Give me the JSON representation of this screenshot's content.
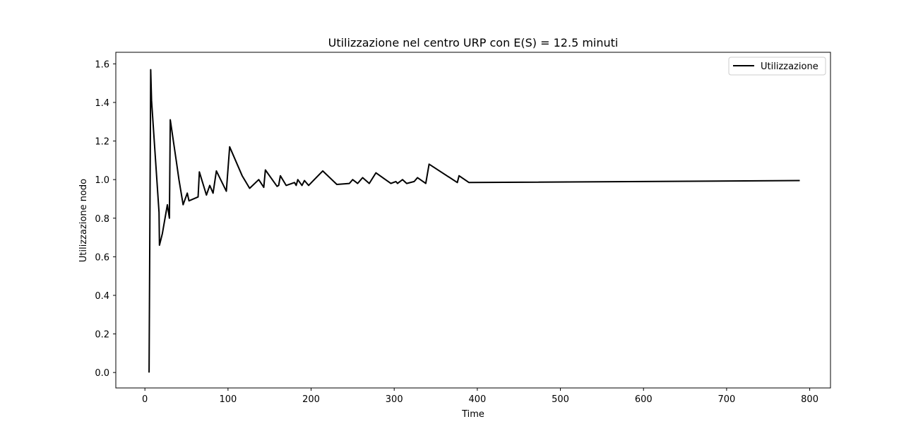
{
  "chart_data": {
    "type": "line",
    "title": "Utilizzazione nel centro URP con E(S) = 12.5 minuti",
    "xlabel": "Time",
    "ylabel": "Utilizzazione nodo",
    "xlim": [
      -35,
      825
    ],
    "ylim": [
      -0.08,
      1.66
    ],
    "xticks": [
      0,
      100,
      200,
      300,
      400,
      500,
      600,
      700,
      800
    ],
    "yticks": [
      0.0,
      0.2,
      0.4,
      0.6,
      0.8,
      1.0,
      1.2,
      1.4,
      1.6
    ],
    "xtick_labels": [
      "0",
      "100",
      "200",
      "300",
      "400",
      "500",
      "600",
      "700",
      "800"
    ],
    "ytick_labels": [
      "0.0",
      "0.2",
      "0.4",
      "0.6",
      "0.8",
      "1.0",
      "1.2",
      "1.4",
      "1.6"
    ],
    "grid": false,
    "legend_position": "top-right",
    "series": [
      {
        "name": "Utilizzazione",
        "color": "#000000",
        "x": [
          5,
          7,
          8,
          17,
          17.5,
          21,
          27,
          29.5,
          30.5,
          38,
          41,
          46,
          51,
          53,
          64,
          65.5,
          74,
          78,
          82,
          86,
          98,
          102,
          117,
          126,
          137,
          143,
          145,
          159,
          161,
          163,
          170,
          180,
          182,
          184,
          189,
          192,
          197,
          214,
          231,
          246,
          250,
          256,
          262,
          270,
          278,
          296,
          302,
          304,
          310,
          315,
          324,
          328,
          338,
          342,
          376,
          378,
          390,
          788
        ],
        "y": [
          0.0,
          1.57,
          1.41,
          0.83,
          0.66,
          0.72,
          0.87,
          0.8,
          1.31,
          1.09,
          1.0,
          0.87,
          0.93,
          0.89,
          0.91,
          1.04,
          0.92,
          0.97,
          0.93,
          1.045,
          0.94,
          1.17,
          1.02,
          0.955,
          1.0,
          0.96,
          1.05,
          0.965,
          0.97,
          1.02,
          0.97,
          0.985,
          0.97,
          1.0,
          0.97,
          0.995,
          0.97,
          1.045,
          0.975,
          0.98,
          1.0,
          0.98,
          1.01,
          0.98,
          1.035,
          0.98,
          0.99,
          0.98,
          1.0,
          0.98,
          0.99,
          1.01,
          0.98,
          1.08,
          0.985,
          1.02,
          0.985,
          0.995
        ]
      }
    ]
  }
}
